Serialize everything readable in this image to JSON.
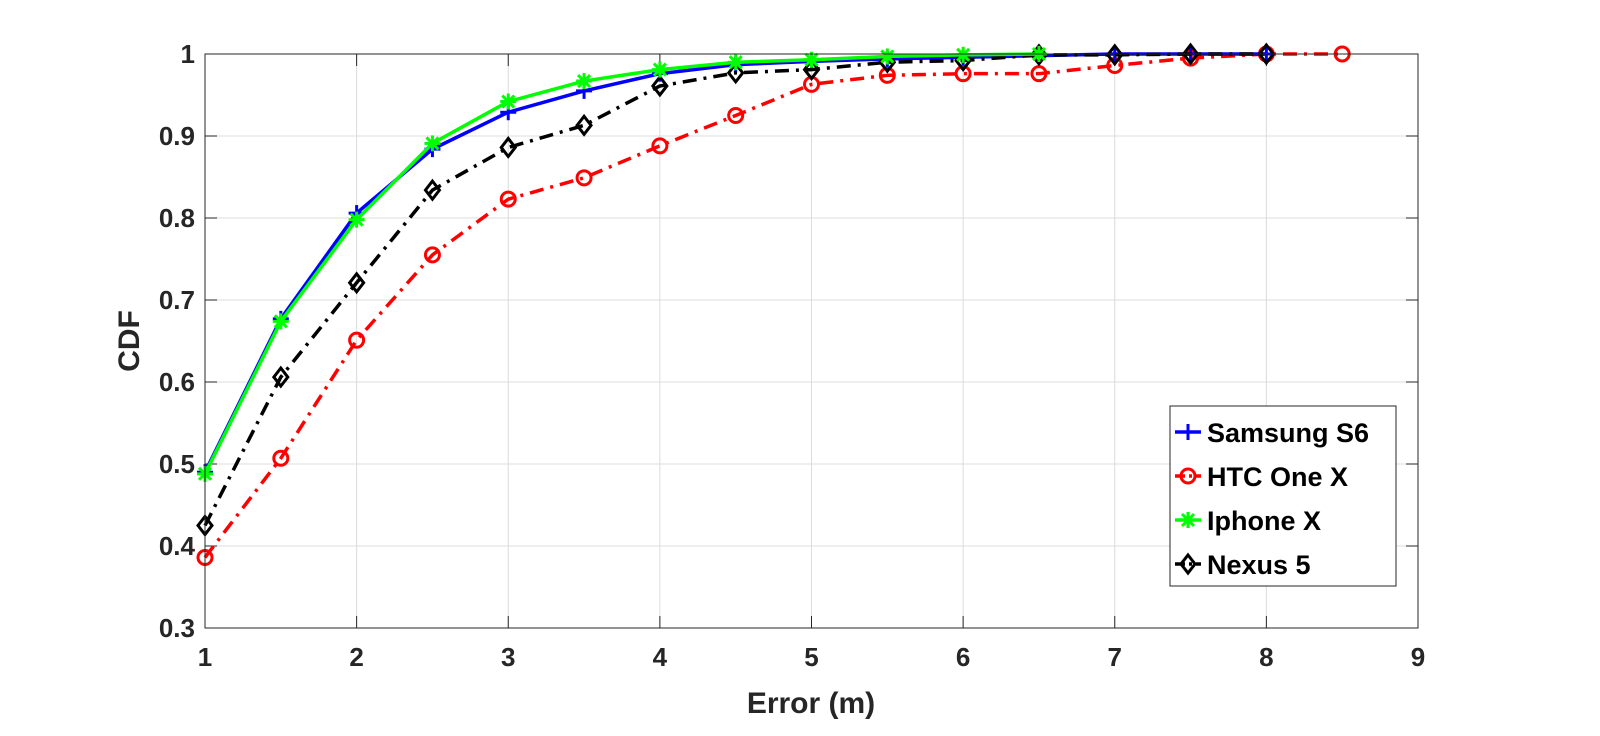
{
  "chart_data": {
    "type": "line",
    "title": "",
    "xlabel": "Error (m)",
    "ylabel": "CDF",
    "xlim": [
      1,
      9
    ],
    "ylim": [
      0.3,
      1
    ],
    "xticks": [
      "1",
      "2",
      "3",
      "4",
      "5",
      "6",
      "7",
      "8",
      "9"
    ],
    "yticks": [
      "0.3",
      "0.4",
      "0.5",
      "0.6",
      "0.7",
      "0.8",
      "0.9",
      "1"
    ],
    "grid": true,
    "legend_position": "bottom-right",
    "series": [
      {
        "name": "Samsung S6",
        "color": "#0000ff",
        "line_style": "solid",
        "marker": "plus",
        "x": [
          1,
          1.5,
          2,
          2.5,
          3,
          3.5,
          4,
          4.5,
          5,
          5.5,
          6,
          6.5,
          7,
          7.5,
          8
        ],
        "y": [
          0.49,
          0.677,
          0.806,
          0.884,
          0.929,
          0.955,
          0.976,
          0.987,
          0.991,
          0.994,
          0.996,
          0.998,
          1.0,
          1.0,
          1.0
        ]
      },
      {
        "name": "HTC One X",
        "color": "#ff0000",
        "line_style": "dashdot",
        "marker": "circle",
        "x": [
          1,
          1.5,
          2,
          2.5,
          3,
          3.5,
          4,
          4.5,
          5,
          5.5,
          6,
          6.5,
          7,
          7.5,
          8,
          8.5
        ],
        "y": [
          0.386,
          0.507,
          0.651,
          0.755,
          0.823,
          0.849,
          0.888,
          0.925,
          0.963,
          0.974,
          0.976,
          0.976,
          0.986,
          0.995,
          1.0,
          1.0
        ]
      },
      {
        "name": "Iphone X",
        "color": "#00ff00",
        "line_style": "solid",
        "marker": "asterisk",
        "x": [
          1,
          1.5,
          2,
          2.5,
          3,
          3.5,
          4,
          4.5,
          5,
          5.5,
          6,
          6.5
        ],
        "y": [
          0.488,
          0.674,
          0.798,
          0.891,
          0.942,
          0.967,
          0.981,
          0.99,
          0.993,
          0.997,
          0.999,
          1.0
        ]
      },
      {
        "name": "Nexus 5",
        "color": "#000000",
        "line_style": "dashdot",
        "marker": "diamond",
        "x": [
          1,
          1.5,
          2,
          2.5,
          3,
          3.5,
          4,
          4.5,
          5,
          5.5,
          6,
          6.5,
          7,
          7.5,
          8
        ],
        "y": [
          0.425,
          0.606,
          0.721,
          0.834,
          0.886,
          0.913,
          0.961,
          0.977,
          0.981,
          0.99,
          0.992,
          0.999,
          0.999,
          1.0,
          1.0
        ]
      }
    ]
  }
}
